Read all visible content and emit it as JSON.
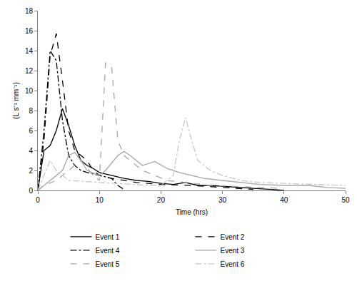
{
  "chart_data": {
    "type": "line",
    "x_label": "Time (hrs)",
    "y_label": "(L s⁻¹ mm⁻¹)",
    "xlim": [
      0,
      50
    ],
    "xticks": [
      0,
      10,
      20,
      30,
      40,
      50
    ],
    "ylim": [
      0,
      18
    ],
    "yticks": [
      0,
      2,
      4,
      6,
      8,
      10,
      12,
      14,
      16,
      18
    ],
    "grid": false,
    "legend": "bottom",
    "series": [
      {
        "name": "Event 1",
        "color": "#000000",
        "line_style": "solid",
        "x": [
          0,
          1,
          2,
          3,
          4,
          5,
          6,
          7,
          8,
          9,
          10,
          12,
          14,
          16,
          18,
          20,
          22,
          24,
          26,
          28,
          30,
          32,
          35,
          38,
          40
        ],
        "values": [
          0,
          4,
          4.5,
          6,
          8.2,
          6.5,
          4.5,
          3,
          2.5,
          2.2,
          1.8,
          1.5,
          1.2,
          1,
          0.9,
          0.7,
          0.6,
          0.8,
          0.5,
          0.5,
          0.4,
          0.3,
          0.2,
          0.1,
          0
        ]
      },
      {
        "name": "Event 2",
        "color": "#000000",
        "line_style": "dash",
        "x": [
          0,
          1,
          2,
          3,
          4,
          5,
          6,
          7,
          8,
          9,
          10,
          12,
          14,
          16,
          20,
          25,
          30,
          35
        ],
        "values": [
          0,
          5,
          13.5,
          15.7,
          11,
          6,
          4,
          3.5,
          3,
          2,
          1.5,
          1.2,
          1,
          0.8,
          0.6,
          0.5,
          0.3,
          0.1
        ]
      },
      {
        "name": "Event 4",
        "color": "#000000",
        "line_style": "dashdot",
        "x": [
          0,
          1,
          2,
          3,
          4,
          5,
          6,
          7,
          8,
          10,
          12,
          13,
          14
        ],
        "values": [
          0,
          6,
          14,
          13,
          7,
          3.5,
          2.5,
          2,
          1.8,
          1.5,
          1.2,
          0.5,
          0.1
        ]
      },
      {
        "name": "Event 3",
        "color": "#a6a6a6",
        "line_style": "solid",
        "x": [
          0,
          2,
          4,
          5,
          6,
          7,
          8,
          10,
          11,
          13,
          14,
          15,
          17,
          19,
          21,
          23,
          25,
          27,
          30,
          33,
          36,
          40,
          44,
          47,
          50
        ],
        "values": [
          0,
          1,
          2,
          3.5,
          3.8,
          3,
          2,
          1.5,
          2,
          3.5,
          3.9,
          3.5,
          2.5,
          2.9,
          2.2,
          1.8,
          1.5,
          1.2,
          1,
          0.8,
          0.6,
          0.5,
          0.5,
          0.3,
          0.2
        ]
      },
      {
        "name": "Event 5",
        "color": "#a6a6a6",
        "line_style": "dash",
        "x": [
          0,
          1,
          3,
          5,
          7,
          9,
          10,
          11,
          12,
          13,
          14,
          15,
          16,
          17,
          19,
          21,
          24,
          28,
          32,
          36,
          40
        ],
        "values": [
          0,
          0.5,
          1,
          2,
          3,
          1.5,
          1,
          12.8,
          12.3,
          5,
          3.5,
          3,
          2.5,
          2,
          1.5,
          1,
          0.8,
          0.5,
          0.4,
          0.3,
          0.2
        ]
      },
      {
        "name": "Event 6",
        "color": "#c8c8c8",
        "line_style": "dashdot",
        "x": [
          0,
          1,
          2,
          3,
          5,
          10,
          15,
          18,
          20,
          22,
          23,
          24,
          25,
          26,
          28,
          30,
          33,
          36,
          40,
          45,
          50
        ],
        "values": [
          0,
          1.5,
          3,
          2,
          1,
          0.8,
          0.6,
          0.5,
          0.5,
          1.5,
          5,
          7.3,
          5,
          3,
          2,
          1.5,
          1,
          0.8,
          0.7,
          0.6,
          0.5
        ]
      }
    ]
  }
}
